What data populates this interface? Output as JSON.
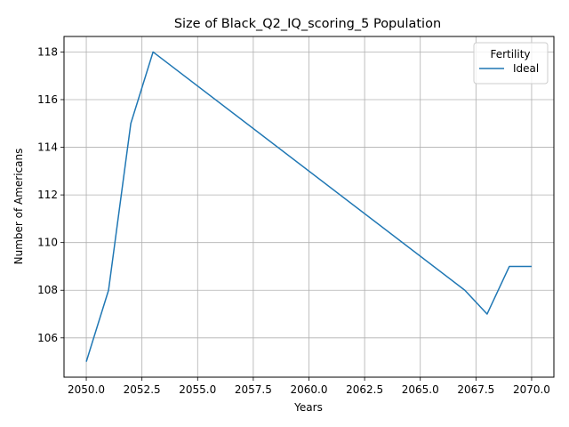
{
  "chart_data": {
    "type": "line",
    "title": "Size of Black_Q2_IQ_scoring_5 Population",
    "xlabel": "Years",
    "ylabel": "Number of Americans",
    "xlim": [
      2049.0,
      2071.0
    ],
    "ylim": [
      104.35,
      118.65
    ],
    "grid": true,
    "x_ticks": [
      2050.0,
      2052.5,
      2055.0,
      2057.5,
      2060.0,
      2062.5,
      2065.0,
      2067.5,
      2070.0
    ],
    "x_tick_labels": [
      "2050.0",
      "2052.5",
      "2055.0",
      "2057.5",
      "2060.0",
      "2062.5",
      "2065.0",
      "2067.5",
      "2070.0"
    ],
    "y_ticks": [
      106,
      108,
      110,
      112,
      114,
      116,
      118
    ],
    "y_tick_labels": [
      "106",
      "108",
      "110",
      "112",
      "114",
      "116",
      "118"
    ],
    "legend": {
      "title": "Fertility",
      "placement": "top-right"
    },
    "series": [
      {
        "name": "Ideal",
        "color": "#1f77b4",
        "x": [
          2050,
          2051,
          2052,
          2053,
          2067,
          2068,
          2069,
          2070
        ],
        "values": [
          105,
          108,
          115,
          118,
          108,
          107,
          109,
          109
        ]
      }
    ]
  }
}
